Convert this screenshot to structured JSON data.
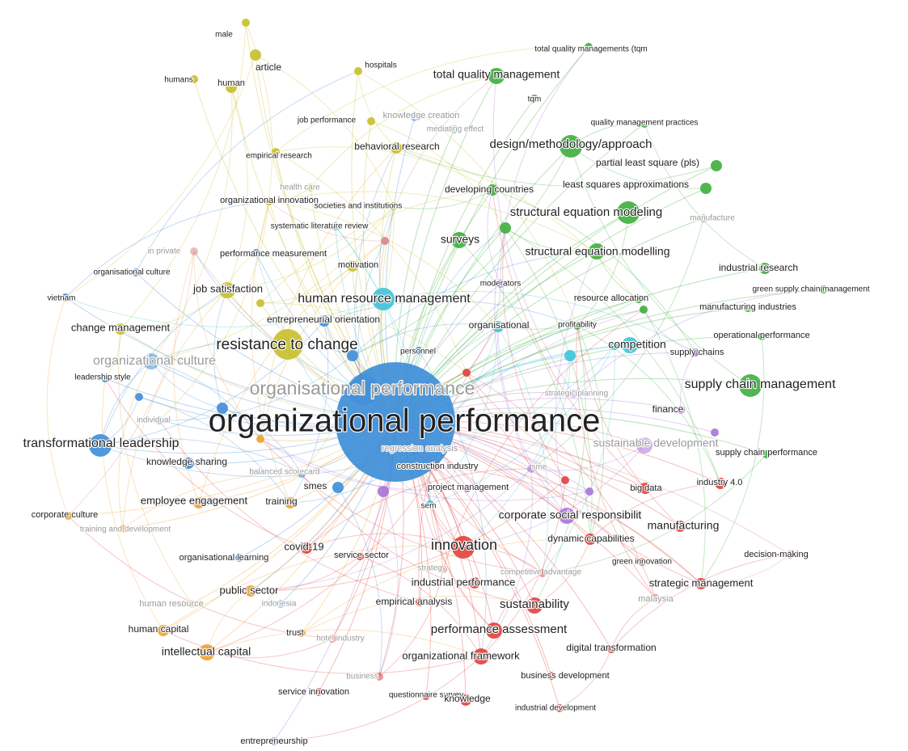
{
  "colors": {
    "red": "#e0413d",
    "green": "#3fae3d",
    "blue": "#3e8ed8",
    "yellow": "#c8bf2a",
    "purple": "#a774d8",
    "cyan": "#3ec3d8",
    "orange": "#f0a12e",
    "pink": "#d9868f",
    "lightblue": "#7fb3e3"
  },
  "hub": "organizational performance",
  "nodes": [
    {
      "label": "male",
      "cluster": "yellow",
      "weight": 1
    },
    {
      "label": "article",
      "cluster": "yellow",
      "weight": 2
    },
    {
      "label": "humans",
      "cluster": "yellow",
      "weight": 1
    },
    {
      "label": "human",
      "cluster": "yellow",
      "weight": 2
    },
    {
      "label": "hospitals",
      "cluster": "yellow",
      "weight": 1
    },
    {
      "label": "total quality managements (tqm",
      "cluster": "green",
      "weight": 1
    },
    {
      "label": "total quality management",
      "cluster": "green",
      "weight": 3
    },
    {
      "label": "tqm",
      "cluster": "green",
      "weight": 1
    },
    {
      "label": "knowledge creation",
      "cluster": "blue",
      "weight": 1,
      "faded": true
    },
    {
      "label": "mediating effect",
      "cluster": "green",
      "weight": 1,
      "faded": true
    },
    {
      "label": "job performance",
      "cluster": "yellow",
      "weight": 1
    },
    {
      "label": "quality management practices",
      "cluster": "green",
      "weight": 1
    },
    {
      "label": "behavioral research",
      "cluster": "yellow",
      "weight": 2
    },
    {
      "label": "design/methodology/approach",
      "cluster": "green",
      "weight": 4
    },
    {
      "label": "empirical research",
      "cluster": "yellow",
      "weight": 1
    },
    {
      "label": "partial least square (pls)",
      "cluster": "green",
      "weight": 2
    },
    {
      "label": "health care",
      "cluster": "yellow",
      "weight": 1,
      "faded": true
    },
    {
      "label": "least squares approximations",
      "cluster": "green",
      "weight": 2
    },
    {
      "label": "developing countries",
      "cluster": "green",
      "weight": 2
    },
    {
      "label": "organizational innovation",
      "cluster": "yellow",
      "weight": 1
    },
    {
      "label": "societies and institutions",
      "cluster": "yellow",
      "weight": 1
    },
    {
      "label": "structural equation modeling",
      "cluster": "green",
      "weight": 4
    },
    {
      "label": "manufacture",
      "cluster": "green",
      "weight": 1,
      "faded": true
    },
    {
      "label": "systematic literature review",
      "cluster": "cyan",
      "weight": 1
    },
    {
      "label": "surveys",
      "cluster": "green",
      "weight": 3
    },
    {
      "label": "in private",
      "cluster": "pink",
      "weight": 1,
      "faded": true
    },
    {
      "label": "performance measurement",
      "cluster": "blue",
      "weight": 1
    },
    {
      "label": "structural equation modelling",
      "cluster": "green",
      "weight": 3
    },
    {
      "label": "motivation",
      "cluster": "yellow",
      "weight": 2
    },
    {
      "label": "organisational culture",
      "cluster": "blue",
      "weight": 1
    },
    {
      "label": "industrial research",
      "cluster": "green",
      "weight": 2
    },
    {
      "label": "moderators",
      "cluster": "purple",
      "weight": 1
    },
    {
      "label": "green supply chain management",
      "cluster": "green",
      "weight": 1
    },
    {
      "label": "vietnam",
      "cluster": "blue",
      "weight": 1
    },
    {
      "label": "job satisfaction",
      "cluster": "yellow",
      "weight": 3
    },
    {
      "label": "human resource management",
      "cluster": "cyan",
      "weight": 4
    },
    {
      "label": "resource allocation",
      "cluster": "green",
      "weight": 1
    },
    {
      "label": "manufacturing industries",
      "cluster": "green",
      "weight": 1
    },
    {
      "label": "entrepreneurial orientation",
      "cluster": "blue",
      "weight": 2
    },
    {
      "label": "change management",
      "cluster": "yellow",
      "weight": 2
    },
    {
      "label": "organisational",
      "cluster": "cyan",
      "weight": 2
    },
    {
      "label": "profitability",
      "cluster": "green",
      "weight": 1
    },
    {
      "label": "operational performance",
      "cluster": "green",
      "weight": 1
    },
    {
      "label": "resistance to change",
      "cluster": "yellow",
      "weight": 5
    },
    {
      "label": "personnel",
      "cluster": "blue",
      "weight": 1
    },
    {
      "label": "competition",
      "cluster": "cyan",
      "weight": 3
    },
    {
      "label": "supply chains",
      "cluster": "purple",
      "weight": 1
    },
    {
      "label": "organizational culture",
      "cluster": "blue",
      "weight": 3,
      "faded": true
    },
    {
      "label": "leadership style",
      "cluster": "blue",
      "weight": 1
    },
    {
      "label": "organisational performance",
      "cluster": "blue",
      "weight": 5,
      "faded": true
    },
    {
      "label": "strategic planning",
      "cluster": "purple",
      "weight": 1,
      "faded": true
    },
    {
      "label": "supply chain management",
      "cluster": "green",
      "weight": 4
    },
    {
      "label": "finance",
      "cluster": "purple",
      "weight": 1
    },
    {
      "label": "individual",
      "cluster": "blue",
      "weight": 1,
      "faded": true
    },
    {
      "label": "transformational leadership",
      "cluster": "blue",
      "weight": 4
    },
    {
      "label": "regression analysis",
      "cluster": "blue",
      "weight": 1,
      "faded": true
    },
    {
      "label": "sustainable development",
      "cluster": "purple",
      "weight": 3,
      "faded": true
    },
    {
      "label": "supply chain performance",
      "cluster": "green",
      "weight": 1
    },
    {
      "label": "knowledge sharing",
      "cluster": "blue",
      "weight": 2
    },
    {
      "label": "construction industry",
      "cluster": "red",
      "weight": 1
    },
    {
      "label": "balanced scorecard",
      "cluster": "blue",
      "weight": 1,
      "faded": true
    },
    {
      "label": "sme",
      "cluster": "purple",
      "weight": 1,
      "faded": true
    },
    {
      "label": "industry 4.0",
      "cluster": "red",
      "weight": 2
    },
    {
      "label": "smes",
      "cluster": "blue",
      "weight": 2
    },
    {
      "label": "project management",
      "cluster": "purple",
      "weight": 1
    },
    {
      "label": "big data",
      "cluster": "red",
      "weight": 2
    },
    {
      "label": "employee engagement",
      "cluster": "orange",
      "weight": 2
    },
    {
      "label": "training",
      "cluster": "orange",
      "weight": 2
    },
    {
      "label": "sem",
      "cluster": "cyan",
      "weight": 1
    },
    {
      "label": "corporate culture",
      "cluster": "orange",
      "weight": 1
    },
    {
      "label": "corporate social responsibilit",
      "cluster": "purple",
      "weight": 3
    },
    {
      "label": "training and development",
      "cluster": "orange",
      "weight": 1,
      "faded": true
    },
    {
      "label": "manufacturing",
      "cluster": "red",
      "weight": 2
    },
    {
      "label": "covid-19",
      "cluster": "red",
      "weight": 2
    },
    {
      "label": "innovation",
      "cluster": "red",
      "weight": 4
    },
    {
      "label": "dynamic capabilities",
      "cluster": "red",
      "weight": 2
    },
    {
      "label": "decision-making",
      "cluster": "pink",
      "weight": 1
    },
    {
      "label": "organisational learning",
      "cluster": "blue",
      "weight": 1
    },
    {
      "label": "service sector",
      "cluster": "red",
      "weight": 1
    },
    {
      "label": "green innovation",
      "cluster": "red",
      "weight": 1
    },
    {
      "label": "strategy",
      "cluster": "red",
      "weight": 1,
      "faded": true
    },
    {
      "label": "competitive advantage",
      "cluster": "red",
      "weight": 1,
      "faded": true
    },
    {
      "label": "strategic management",
      "cluster": "red",
      "weight": 2
    },
    {
      "label": "public sector",
      "cluster": "orange",
      "weight": 2
    },
    {
      "label": "industrial performance",
      "cluster": "red",
      "weight": 2
    },
    {
      "label": "human resource",
      "cluster": "orange",
      "weight": 1,
      "faded": true
    },
    {
      "label": "indonesia",
      "cluster": "blue",
      "weight": 1,
      "faded": true
    },
    {
      "label": "empirical analysis",
      "cluster": "red",
      "weight": 1
    },
    {
      "label": "sustainability",
      "cluster": "red",
      "weight": 3
    },
    {
      "label": "malaysia",
      "cluster": "red",
      "weight": 1,
      "faded": true
    },
    {
      "label": "human capital",
      "cluster": "orange",
      "weight": 2
    },
    {
      "label": "performance assessment",
      "cluster": "red",
      "weight": 3
    },
    {
      "label": "trust",
      "cluster": "orange",
      "weight": 1
    },
    {
      "label": "hotel industry",
      "cluster": "red",
      "weight": 1,
      "faded": true
    },
    {
      "label": "digital transformation",
      "cluster": "red",
      "weight": 1
    },
    {
      "label": "intellectual capital",
      "cluster": "orange",
      "weight": 3
    },
    {
      "label": "organizational framework",
      "cluster": "red",
      "weight": 3
    },
    {
      "label": "business",
      "cluster": "red",
      "weight": 1,
      "faded": true
    },
    {
      "label": "business development",
      "cluster": "red",
      "weight": 1
    },
    {
      "label": "service innovation",
      "cluster": "red",
      "weight": 1
    },
    {
      "label": "questionnaire survey",
      "cluster": "red",
      "weight": 1
    },
    {
      "label": "knowledge",
      "cluster": "red",
      "weight": 2
    },
    {
      "label": "industrial development",
      "cluster": "red",
      "weight": 1
    },
    {
      "label": "entrepreneurship",
      "cluster": "purple",
      "weight": 1
    }
  ],
  "unlabeled_nodes": [
    {
      "cluster": "blue",
      "weight": 2
    },
    {
      "cluster": "blue",
      "weight": 2
    },
    {
      "cluster": "blue",
      "weight": 1
    },
    {
      "cluster": "cyan",
      "weight": 2
    },
    {
      "cluster": "cyan",
      "weight": 1
    },
    {
      "cluster": "green",
      "weight": 2
    },
    {
      "cluster": "green",
      "weight": 1
    },
    {
      "cluster": "red",
      "weight": 1
    },
    {
      "cluster": "red",
      "weight": 1
    },
    {
      "cluster": "purple",
      "weight": 1
    },
    {
      "cluster": "purple",
      "weight": 2
    },
    {
      "cluster": "purple",
      "weight": 1
    },
    {
      "cluster": "yellow",
      "weight": 1
    },
    {
      "cluster": "orange",
      "weight": 1
    },
    {
      "cluster": "pink",
      "weight": 1
    }
  ]
}
